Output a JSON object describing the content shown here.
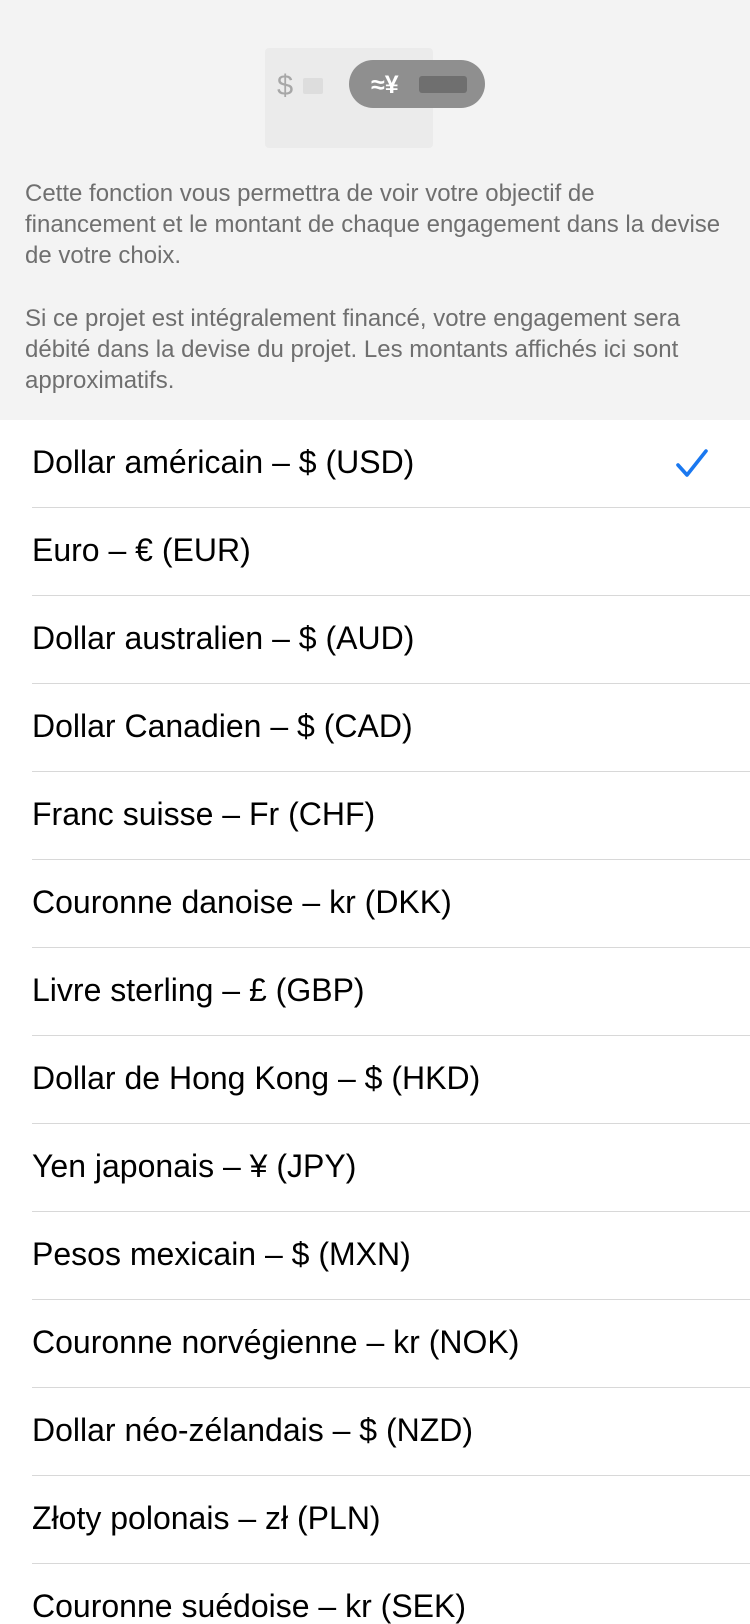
{
  "illustration": {
    "left_symbol": "$",
    "right_symbol": "≈¥"
  },
  "description": {
    "paragraph1": "Cette fonction vous permettra de voir votre objectif de financement et le montant de chaque engagement dans la devise de votre choix.",
    "paragraph2": "Si ce projet est intégralement financé, votre engagement sera débité dans la devise du projet. Les montants affichés ici sont approximatifs."
  },
  "currencies": [
    {
      "label": "Dollar américain – $ (USD)",
      "selected": true
    },
    {
      "label": "Euro – € (EUR)",
      "selected": false
    },
    {
      "label": "Dollar australien – $ (AUD)",
      "selected": false
    },
    {
      "label": "Dollar Canadien – $ (CAD)",
      "selected": false
    },
    {
      "label": "Franc suisse – Fr (CHF)",
      "selected": false
    },
    {
      "label": "Couronne danoise – kr (DKK)",
      "selected": false
    },
    {
      "label": "Livre sterling – £ (GBP)",
      "selected": false
    },
    {
      "label": "Dollar de Hong Kong – $ (HKD)",
      "selected": false
    },
    {
      "label": "Yen japonais – ¥ (JPY)",
      "selected": false
    },
    {
      "label": "Pesos mexicain – $ (MXN)",
      "selected": false
    },
    {
      "label": "Couronne norvégienne – kr (NOK)",
      "selected": false
    },
    {
      "label": "Dollar néo-zélandais – $ (NZD)",
      "selected": false
    },
    {
      "label": "Złoty polonais – zł (PLN)",
      "selected": false
    },
    {
      "label": "Couronne suédoise – kr (SEK)",
      "selected": false
    }
  ],
  "colors": {
    "accent": "#1a78f0",
    "header_bg": "#f3f3f3",
    "description_text": "#6f6f6f",
    "separator": "#d8d8d8"
  },
  "icons": {
    "selected_marker": "checkmark-icon"
  }
}
